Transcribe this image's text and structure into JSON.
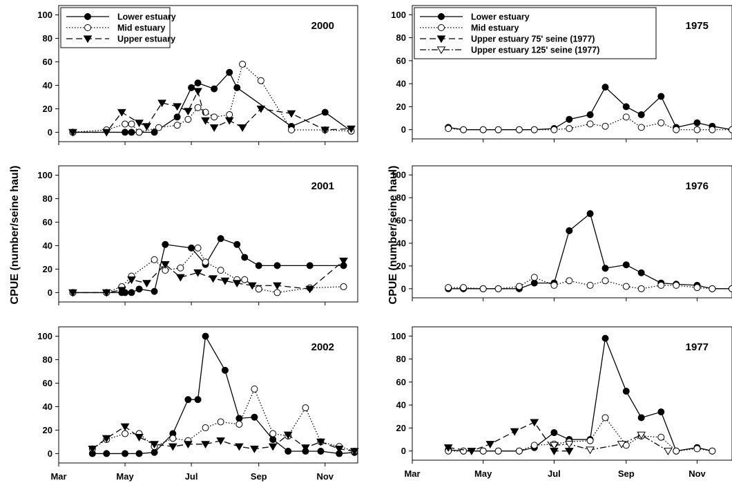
{
  "y_axis_label": "CPUE (number/seine haul)",
  "month_labels": [
    "Mar",
    "May",
    "Jul",
    "Sep",
    "Nov"
  ],
  "y_ticks": [
    0,
    20,
    40,
    60,
    80,
    100
  ],
  "chart_data": [
    {
      "type": "line",
      "year_label": "2000",
      "ylim": [
        -8,
        108
      ],
      "legend": [
        "Lower estuary",
        "Mid estuary",
        "Upper estuary"
      ],
      "series": [
        {
          "name": "Lower estuary",
          "marker": "filled-circle",
          "line": "solid",
          "x": [
            "Mar 14",
            "May 1",
            "May 7",
            "May 14",
            "May 28",
            "Jun 18",
            "Jul 1",
            "Jul 7",
            "Jul 22",
            "Aug 5",
            "Aug 12",
            "Oct 1",
            "Nov 1",
            "Nov 25"
          ],
          "values": [
            0,
            0,
            0,
            0,
            0,
            13,
            38,
            42,
            37,
            51,
            38,
            5,
            17,
            1
          ]
        },
        {
          "name": "Mid estuary",
          "marker": "open-circle",
          "line": "dotted",
          "x": [
            "Mar 14",
            "Apr 14",
            "May 1",
            "May 7",
            "May 14",
            "Jun 1",
            "Jun 18",
            "Jun 28",
            "Jul 7",
            "Jul 14",
            "Jul 22",
            "Aug 5",
            "Aug 17",
            "Sep 3",
            "Oct 1",
            "Nov 1",
            "Nov 25"
          ],
          "values": [
            0,
            2,
            7,
            7,
            0,
            4,
            6,
            11,
            21,
            17,
            13,
            15,
            58,
            44,
            2,
            2,
            1
          ]
        },
        {
          "name": "Upper estuary",
          "marker": "filled-triangle-down",
          "line": "dashed",
          "x": [
            "Mar 14",
            "Apr 14",
            "Apr 28",
            "May 14",
            "May 21",
            "Jun 4",
            "Jun 18",
            "Jun 28",
            "Jul 7",
            "Jul 14",
            "Jul 22",
            "Aug 5",
            "Aug 17",
            "Sep 3",
            "Oct 1",
            "Nov 1",
            "Nov 25"
          ],
          "values": [
            0,
            0,
            17,
            8,
            5,
            25,
            22,
            18,
            35,
            10,
            4,
            10,
            4,
            20,
            16,
            2,
            3
          ]
        }
      ]
    },
    {
      "type": "line",
      "year_label": "2001",
      "ylim": [
        -8,
        108
      ],
      "legend": [],
      "series": [
        {
          "name": "Lower estuary",
          "marker": "filled-circle",
          "line": "solid",
          "x": [
            "Mar 14",
            "Apr 14",
            "Apr 28",
            "May 1",
            "May 7",
            "May 14",
            "May 28",
            "Jun 7",
            "Jul 1",
            "Jul 14",
            "Jul 28",
            "Aug 12",
            "Aug 19",
            "Sep 1",
            "Sep 18",
            "Oct 18",
            "Nov 18"
          ],
          "values": [
            0,
            0,
            0,
            0,
            0,
            3,
            1,
            41,
            38,
            24,
            46,
            41,
            30,
            23,
            23,
            23,
            23
          ]
        },
        {
          "name": "Mid estuary",
          "marker": "open-circle",
          "line": "dotted",
          "x": [
            "Mar 14",
            "Apr 14",
            "Apr 28",
            "May 7",
            "May 28",
            "Jun 7",
            "Jun 21",
            "Jul 7",
            "Jul 14",
            "Jul 28",
            "Aug 12",
            "Aug 19",
            "Sep 1",
            "Sep 18",
            "Oct 18",
            "Nov 18"
          ],
          "values": [
            0,
            0,
            5,
            14,
            28,
            19,
            21,
            38,
            26,
            19,
            11,
            11,
            3,
            0,
            4,
            5
          ]
        },
        {
          "name": "Upper estuary",
          "marker": "filled-triangle-down",
          "line": "dashed",
          "x": [
            "Mar 14",
            "Apr 14",
            "Apr 28",
            "May 7",
            "May 21",
            "Jun 7",
            "Jun 21",
            "Jul 7",
            "Jul 21",
            "Aug 1",
            "Aug 12",
            "Aug 26",
            "Sep 18",
            "Oct 18",
            "Nov 18"
          ],
          "values": [
            0,
            0,
            2,
            11,
            8,
            24,
            13,
            17,
            12,
            10,
            8,
            6,
            6,
            3,
            27
          ]
        }
      ]
    },
    {
      "type": "line",
      "year_label": "2002",
      "ylim": [
        -8,
        108
      ],
      "legend": [],
      "series": [
        {
          "name": "Lower estuary",
          "marker": "filled-circle",
          "line": "solid",
          "x": [
            "Apr 1",
            "Apr 14",
            "May 1",
            "May 14",
            "May 28",
            "Jun 14",
            "Jun 28",
            "Jul 7",
            "Jul 14",
            "Aug 1",
            "Aug 14",
            "Aug 28",
            "Sep 14",
            "Sep 28",
            "Oct 14",
            "Oct 28",
            "Nov 14",
            "Nov 28"
          ],
          "values": [
            0,
            0,
            0,
            0,
            1,
            17,
            46,
            46,
            100,
            71,
            30,
            31,
            12,
            2,
            2,
            2,
            0,
            1
          ]
        },
        {
          "name": "Mid estuary",
          "marker": "open-circle",
          "line": "dotted",
          "x": [
            "Apr 1",
            "Apr 14",
            "May 1",
            "May 14",
            "May 28",
            "Jun 14",
            "Jun 28",
            "Jul 14",
            "Jul 28",
            "Aug 14",
            "Aug 28",
            "Sep 14",
            "Sep 28",
            "Oct 14",
            "Oct 28",
            "Nov 14",
            "Nov 28"
          ],
          "values": [
            4,
            12,
            17,
            17,
            6,
            13,
            11,
            22,
            27,
            25,
            55,
            17,
            15,
            39,
            10,
            6,
            2
          ]
        },
        {
          "name": "Upper estuary",
          "marker": "filled-triangle-down",
          "line": "dashed",
          "x": [
            "Apr 1",
            "Apr 14",
            "May 1",
            "May 14",
            "May 28",
            "Jun 14",
            "Jun 28",
            "Jul 14",
            "Jul 28",
            "Aug 14",
            "Aug 28",
            "Sep 14",
            "Sep 28",
            "Oct 14",
            "Oct 28",
            "Nov 14",
            "Nov 28"
          ],
          "values": [
            4,
            13,
            23,
            14,
            8,
            6,
            8,
            8,
            11,
            6,
            4,
            6,
            16,
            5,
            10,
            4,
            2
          ]
        }
      ]
    },
    {
      "type": "line",
      "year_label": "1975",
      "ylim": [
        -8,
        108
      ],
      "legend": [
        "Lower estuary",
        "Mid estuary",
        "Upper estuary 75' seine (1977)",
        "Upper estuary 125' seine (1977)"
      ],
      "series": [
        {
          "name": "Lower estuary",
          "marker": "filled-circle",
          "line": "solid",
          "x": [
            "Apr 1",
            "Apr 14",
            "May 1",
            "May 14",
            "Jun 1",
            "Jun 14",
            "Jul 1",
            "Jul 14",
            "Aug 1",
            "Aug 14",
            "Sep 1",
            "Sep 14",
            "Oct 1",
            "Oct 14",
            "Nov 1",
            "Nov 14",
            "Dec 1"
          ],
          "values": [
            2,
            0,
            0,
            0,
            0,
            0,
            1,
            9,
            13,
            37,
            20,
            13,
            29,
            2,
            6,
            3,
            0
          ]
        },
        {
          "name": "Mid estuary",
          "marker": "open-circle",
          "line": "dotted",
          "x": [
            "Apr 1",
            "Apr 14",
            "May 1",
            "May 14",
            "Jun 1",
            "Jun 14",
            "Jul 1",
            "Jul 14",
            "Aug 1",
            "Aug 14",
            "Sep 1",
            "Sep 14",
            "Oct 1",
            "Oct 14",
            "Nov 1",
            "Nov 14",
            "Dec 1"
          ],
          "values": [
            1,
            0,
            0,
            0,
            0,
            0,
            0,
            1,
            5,
            3,
            11,
            2,
            6,
            0,
            0,
            0,
            0
          ]
        }
      ]
    },
    {
      "type": "line",
      "year_label": "1976",
      "ylim": [
        -8,
        108
      ],
      "legend": [],
      "series": [
        {
          "name": "Lower estuary",
          "marker": "filled-circle",
          "line": "solid",
          "x": [
            "Apr 1",
            "Apr 14",
            "May 1",
            "May 14",
            "Jun 1",
            "Jun 14",
            "Jul 1",
            "Jul 14",
            "Aug 1",
            "Aug 14",
            "Sep 1",
            "Sep 14",
            "Oct 1",
            "Oct 14",
            "Nov 1",
            "Nov 14",
            "Dec 1"
          ],
          "values": [
            0,
            0,
            0,
            0,
            0,
            5,
            5,
            51,
            66,
            18,
            21,
            14,
            5,
            4,
            3,
            0,
            0
          ]
        },
        {
          "name": "Mid estuary",
          "marker": "open-circle",
          "line": "dotted",
          "x": [
            "Apr 1",
            "Apr 14",
            "May 1",
            "May 14",
            "Jun 1",
            "Jun 14",
            "Jul 1",
            "Jul 14",
            "Aug 1",
            "Aug 14",
            "Sep 1",
            "Sep 14",
            "Oct 1",
            "Oct 14",
            "Nov 1",
            "Nov 14",
            "Dec 1"
          ],
          "values": [
            1,
            1,
            0,
            0,
            2,
            10,
            3,
            7,
            3,
            7,
            2,
            0,
            3,
            3,
            1,
            0,
            0
          ]
        }
      ]
    },
    {
      "type": "line",
      "year_label": "1977",
      "ylim": [
        -8,
        108
      ],
      "legend": [],
      "series": [
        {
          "name": "Lower estuary",
          "marker": "filled-circle",
          "line": "solid",
          "x": [
            "Apr 1",
            "Apr 14",
            "May 1",
            "May 14",
            "Jun 1",
            "Jun 14",
            "Jul 1",
            "Jul 14",
            "Aug 1",
            "Aug 14",
            "Sep 1",
            "Sep 14",
            "Oct 1",
            "Oct 14",
            "Nov 1",
            "Nov 14"
          ],
          "values": [
            1,
            0,
            0,
            0,
            0,
            3,
            16,
            10,
            10,
            98,
            52,
            29,
            34,
            0,
            3,
            0
          ]
        },
        {
          "name": "Mid estuary",
          "marker": "open-circle",
          "line": "dotted",
          "x": [
            "Apr 1",
            "Apr 14",
            "May 1",
            "May 14",
            "Jun 1",
            "Jun 14",
            "Jul 1",
            "Jul 14",
            "Aug 1",
            "Aug 14",
            "Sep 1",
            "Sep 14",
            "Oct 1",
            "Oct 14",
            "Nov 1",
            "Nov 14"
          ],
          "values": [
            0,
            0,
            0,
            0,
            0,
            5,
            6,
            8,
            9,
            29,
            5,
            13,
            12,
            0,
            2,
            0
          ]
        },
        {
          "name": "Upper estuary 75' seine (1977)",
          "marker": "filled-triangle-down",
          "line": "dashed",
          "x": [
            "Apr 1",
            "Apr 21",
            "May 7",
            "May 28",
            "Jun 14",
            "Jul 1",
            "Jul 14"
          ],
          "values": [
            3,
            0,
            6,
            17,
            25,
            0,
            0
          ]
        },
        {
          "name": "Upper estuary 125' seine (1977)",
          "marker": "open-triangle-down",
          "line": "dash-dot",
          "x": [
            "Jul 1",
            "Jul 14",
            "Aug 1",
            "Aug 28",
            "Sep 14",
            "Oct 7"
          ],
          "values": [
            5,
            6,
            1,
            6,
            14,
            0
          ]
        }
      ]
    }
  ]
}
